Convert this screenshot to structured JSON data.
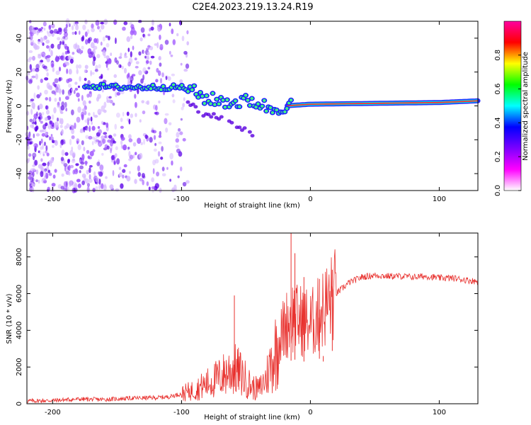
{
  "title": "C2E4.2023.219.13.24.R19",
  "chart_data": [
    {
      "type": "heatmap",
      "xlabel": "Height of straight line (km)",
      "ylabel": "Frequency (Hz)",
      "xlim": [
        -220,
        130
      ],
      "ylim": [
        -50,
        50
      ],
      "xticks": [
        -200,
        -100,
        0,
        100
      ],
      "yticks": [
        -40,
        -20,
        0,
        20,
        40
      ],
      "grid": false,
      "colorbar": {
        "label": "Normalized spectral amplitude",
        "range": [
          0,
          1
        ],
        "ticks": [
          0.0,
          0.2,
          0.4,
          0.6,
          0.8
        ],
        "colormap": [
          "#ffffff",
          "#ff00ff",
          "#7b00ff",
          "#0000ff",
          "#00ffff",
          "#00ff00",
          "#ffff00",
          "#ff0000",
          "#ff00a0"
        ]
      },
      "features": {
        "noise_region_x": [
          -220,
          -95
        ],
        "main_band": [
          {
            "x": -175,
            "y": 12
          },
          {
            "x": -150,
            "y": 11
          },
          {
            "x": -125,
            "y": 11
          },
          {
            "x": -100,
            "y": 11
          },
          {
            "x": -90,
            "y": 8
          },
          {
            "x": -80,
            "y": 4
          },
          {
            "x": -60,
            "y": 2
          },
          {
            "x": -45,
            "y": 3
          },
          {
            "x": -30,
            "y": -2
          },
          {
            "x": -20,
            "y": 0
          },
          {
            "x": 0,
            "y": 1
          },
          {
            "x": 50,
            "y": 1.5
          },
          {
            "x": 100,
            "y": 2
          },
          {
            "x": 130,
            "y": 3
          }
        ],
        "lower_branch": [
          {
            "x": -95,
            "y": 2
          },
          {
            "x": -85,
            "y": -4
          },
          {
            "x": -70,
            "y": -7
          },
          {
            "x": -55,
            "y": -12
          },
          {
            "x": -45,
            "y": -17
          }
        ]
      }
    },
    {
      "type": "line",
      "xlabel": "Height of straight line (km)",
      "ylabel": "SNR (10 * v/v)",
      "xlim": [
        -220,
        130
      ],
      "ylim": [
        0,
        9300
      ],
      "xticks": [
        -200,
        -100,
        0,
        100
      ],
      "yticks": [
        0,
        2000,
        4000,
        6000,
        8000
      ],
      "grid": false,
      "color": "#e8302d",
      "series": [
        {
          "x": [
            -220,
            -200,
            -180,
            -160,
            -140,
            -120,
            -110,
            -100,
            -90,
            -80,
            -70,
            -65,
            -60,
            -55,
            -50,
            -45,
            -40,
            -35,
            -30,
            -25,
            -20,
            -15,
            -12,
            -10,
            -5,
            0,
            5,
            10,
            15,
            20,
            30,
            40,
            50,
            60,
            70,
            80,
            90,
            100,
            110,
            120,
            130
          ],
          "values": [
            150,
            180,
            250,
            230,
            300,
            330,
            380,
            550,
            750,
            1100,
            1450,
            1700,
            1900,
            1700,
            1300,
            900,
            800,
            1300,
            2300,
            3300,
            4200,
            4700,
            4800,
            4500,
            4600,
            4300,
            4700,
            5200,
            5600,
            6000,
            6600,
            6900,
            7000,
            6950,
            6950,
            6900,
            6950,
            6850,
            6850,
            6750,
            6650
          ]
        }
      ],
      "spikes": [
        {
          "x": -59,
          "y": 5900
        },
        {
          "x": -15,
          "y": 9300
        },
        {
          "x": -12,
          "y": 8200
        },
        {
          "x": -5,
          "y": 6900
        },
        {
          "x": 7,
          "y": 6800
        },
        {
          "x": 17,
          "y": 7300
        },
        {
          "x": 10,
          "y": 2300
        }
      ]
    }
  ]
}
